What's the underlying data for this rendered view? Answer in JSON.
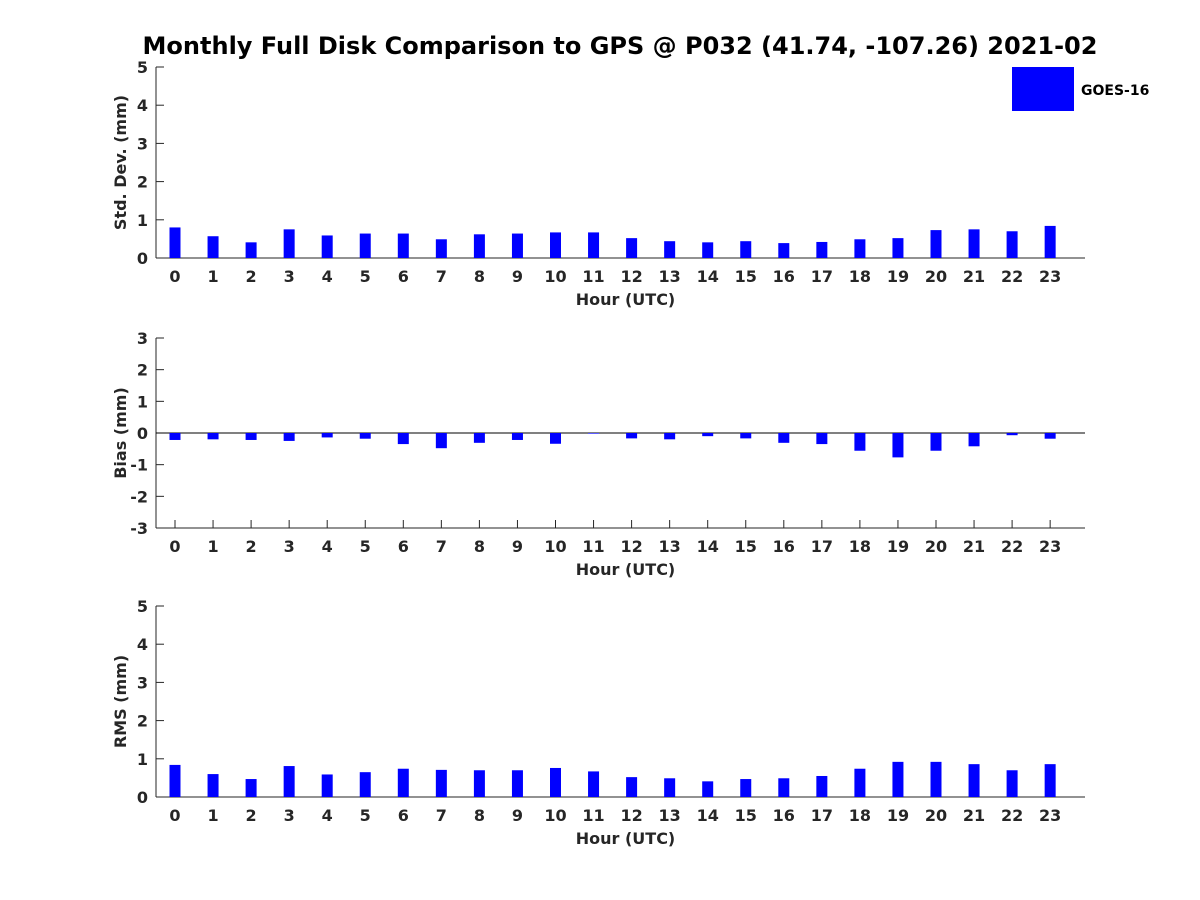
{
  "title": "Monthly Full Disk Comparison to GPS @ P032 (41.74, -107.26) 2021-02",
  "legend": {
    "label": "GOES-16",
    "color": "#0000ff"
  },
  "chart_data": [
    {
      "type": "bar",
      "ylabel": "Std. Dev. (mm)",
      "xlabel": "Hour (UTC)",
      "ylim": [
        0,
        5
      ],
      "yticks": [
        0,
        1,
        2,
        3,
        4,
        5
      ],
      "categories": [
        "0",
        "1",
        "2",
        "3",
        "4",
        "5",
        "6",
        "7",
        "8",
        "9",
        "10",
        "11",
        "12",
        "13",
        "14",
        "15",
        "16",
        "17",
        "18",
        "19",
        "20",
        "21",
        "22",
        "23"
      ],
      "series": [
        {
          "name": "GOES-16",
          "color": "#0000ff",
          "values": [
            0.8,
            0.57,
            0.41,
            0.75,
            0.59,
            0.64,
            0.64,
            0.49,
            0.62,
            0.64,
            0.67,
            0.67,
            0.52,
            0.44,
            0.41,
            0.44,
            0.39,
            0.42,
            0.49,
            0.52,
            0.73,
            0.75,
            0.7,
            0.84
          ]
        }
      ]
    },
    {
      "type": "bar",
      "ylabel": "Bias (mm)",
      "xlabel": "Hour (UTC)",
      "ylim": [
        -3,
        3
      ],
      "yticks": [
        -3,
        -2,
        -1,
        0,
        1,
        2,
        3
      ],
      "categories": [
        "0",
        "1",
        "2",
        "3",
        "4",
        "5",
        "6",
        "7",
        "8",
        "9",
        "10",
        "11",
        "12",
        "13",
        "14",
        "15",
        "16",
        "17",
        "18",
        "19",
        "20",
        "21",
        "22",
        "23"
      ],
      "series": [
        {
          "name": "GOES-16",
          "color": "#0000ff",
          "values": [
            -0.22,
            -0.2,
            -0.22,
            -0.25,
            -0.14,
            -0.18,
            -0.35,
            -0.48,
            -0.31,
            -0.22,
            -0.34,
            -0.02,
            -0.17,
            -0.2,
            -0.1,
            -0.17,
            -0.31,
            -0.35,
            -0.56,
            -0.77,
            -0.56,
            -0.42,
            -0.07,
            -0.18
          ]
        }
      ]
    },
    {
      "type": "bar",
      "ylabel": "RMS (mm)",
      "xlabel": "Hour (UTC)",
      "ylim": [
        0,
        5
      ],
      "yticks": [
        0,
        1,
        2,
        3,
        4,
        5
      ],
      "categories": [
        "0",
        "1",
        "2",
        "3",
        "4",
        "5",
        "6",
        "7",
        "8",
        "9",
        "10",
        "11",
        "12",
        "13",
        "14",
        "15",
        "16",
        "17",
        "18",
        "19",
        "20",
        "21",
        "22",
        "23"
      ],
      "series": [
        {
          "name": "GOES-16",
          "color": "#0000ff",
          "values": [
            0.84,
            0.6,
            0.47,
            0.81,
            0.59,
            0.65,
            0.74,
            0.71,
            0.7,
            0.7,
            0.76,
            0.67,
            0.52,
            0.49,
            0.41,
            0.47,
            0.49,
            0.55,
            0.74,
            0.92,
            0.92,
            0.86,
            0.7,
            0.86
          ]
        }
      ]
    }
  ]
}
